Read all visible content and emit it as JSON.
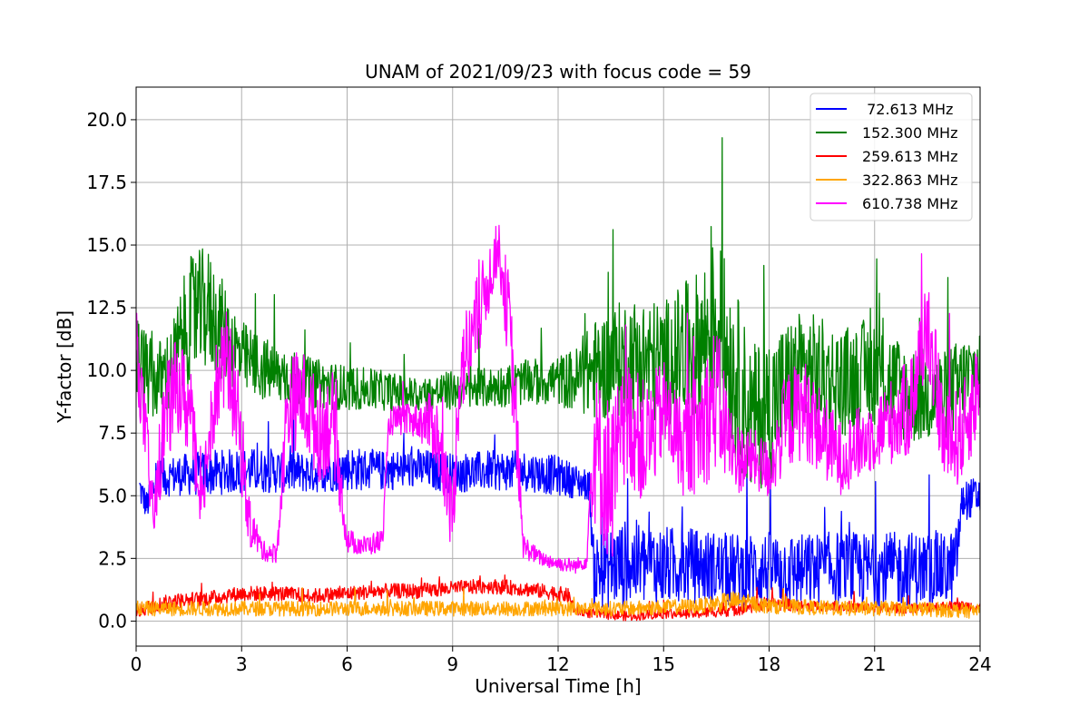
{
  "chart_data": {
    "type": "line",
    "title": "UNAM of 2021/09/23 with focus code = 59",
    "xlabel": "Universal Time [h]",
    "ylabel": "Y-factor [dB]",
    "xlim": [
      0,
      24
    ],
    "ylim": [
      -1.0,
      21.3
    ],
    "xticks": [
      0,
      3,
      6,
      9,
      12,
      15,
      18,
      21,
      24
    ],
    "xtick_labels": [
      "0",
      "3",
      "6",
      "9",
      "12",
      "15",
      "18",
      "21",
      "24"
    ],
    "yticks": [
      0,
      2.5,
      5,
      7.5,
      10,
      12.5,
      15,
      17.5,
      20
    ],
    "ytick_labels": [
      "0.0",
      "2.5",
      "5.0",
      "7.5",
      "10.0",
      "12.5",
      "15.0",
      "17.5",
      "20.0"
    ],
    "grid": true,
    "legend_position": "top-right",
    "series": [
      {
        "name": " 72.613 MHz",
        "color": "#0000ff",
        "x": [
          0.1,
          0.3,
          0.6,
          1,
          2,
          3,
          4,
          5,
          6,
          7,
          8,
          9,
          10,
          11,
          12,
          12.9,
          13,
          14,
          15,
          16,
          17,
          18,
          19,
          20,
          21,
          22,
          23,
          23.3,
          23.5,
          24
        ],
        "y": [
          5.3,
          4.6,
          5.6,
          5.8,
          5.9,
          6.0,
          6.0,
          5.9,
          6.1,
          6.0,
          6.1,
          5.9,
          6.0,
          6.0,
          5.8,
          5.4,
          2.0,
          2.3,
          2.2,
          2.2,
          2.0,
          2.1,
          2.0,
          2.1,
          2.0,
          2.1,
          2.0,
          2.2,
          4.8,
          5.0
        ],
        "noise": [
          0.7,
          0.6,
          0.8,
          0.8,
          0.9,
          0.9,
          0.9,
          0.8,
          0.9,
          0.8,
          0.8,
          0.8,
          0.8,
          0.8,
          0.8,
          0.6,
          1.5,
          1.8,
          1.6,
          1.5,
          1.5,
          1.5,
          1.5,
          1.5,
          1.5,
          1.5,
          1.5,
          1.5,
          0.8,
          0.8
        ]
      },
      {
        "name": "152.300 MHz",
        "color": "#008000",
        "x": [
          0,
          0.5,
          1,
          1.5,
          2,
          2.5,
          3,
          4,
          5,
          6,
          7,
          8,
          9,
          10,
          11,
          12,
          12.5,
          13,
          14,
          15,
          16,
          16.5,
          17,
          17.5,
          18,
          18.5,
          19,
          20,
          21,
          22,
          23,
          24
        ],
        "y": [
          10.5,
          9.5,
          10.0,
          12.0,
          12.5,
          11.5,
          10.5,
          9.8,
          9.5,
          9.3,
          9.2,
          9.0,
          9.2,
          9.3,
          9.5,
          9.6,
          9.6,
          10.0,
          10.5,
          10.3,
          11.0,
          12.0,
          10.0,
          8.0,
          8.5,
          9.5,
          10.0,
          9.5,
          10.0,
          9.0,
          9.0,
          10.0
        ],
        "noise": [
          2.0,
          1.5,
          1.8,
          2.5,
          2.5,
          2.0,
          1.5,
          1.2,
          1.0,
          0.9,
          0.8,
          0.7,
          0.8,
          0.8,
          0.9,
          1.0,
          1.3,
          2.0,
          2.5,
          2.5,
          3.0,
          3.5,
          3.5,
          3.0,
          3.0,
          2.5,
          2.5,
          2.2,
          2.2,
          2.0,
          1.8,
          2.0
        ]
      },
      {
        "name": "259.613 MHz",
        "color": "#ff0000",
        "x": [
          0,
          1,
          2,
          3,
          4,
          5,
          6,
          7,
          8,
          9,
          10,
          11,
          12,
          12.3,
          12.5,
          13,
          14,
          15,
          16,
          17,
          18,
          19,
          20,
          21,
          22,
          23,
          24
        ],
        "y": [
          0.4,
          0.8,
          0.9,
          1.1,
          1.1,
          1.0,
          1.1,
          1.2,
          1.2,
          1.3,
          1.4,
          1.3,
          1.1,
          1.0,
          0.4,
          0.3,
          0.2,
          0.3,
          0.3,
          0.5,
          0.7,
          0.6,
          0.6,
          0.5,
          0.5,
          0.6,
          0.6
        ],
        "noise": [
          0.3,
          0.3,
          0.3,
          0.3,
          0.3,
          0.3,
          0.3,
          0.3,
          0.3,
          0.3,
          0.3,
          0.3,
          0.3,
          0.3,
          0.2,
          0.2,
          0.2,
          0.2,
          0.2,
          0.3,
          0.3,
          0.2,
          0.2,
          0.2,
          0.2,
          0.2,
          0.2
        ]
      },
      {
        "name": "322.863 MHz",
        "color": "#ffa500",
        "x": [
          0,
          2,
          4,
          6,
          8,
          10,
          12,
          14,
          16,
          17,
          18,
          20,
          22,
          24
        ],
        "y": [
          0.5,
          0.5,
          0.5,
          0.5,
          0.5,
          0.5,
          0.5,
          0.5,
          0.6,
          0.8,
          0.6,
          0.5,
          0.5,
          0.4
        ],
        "noise": [
          0.3,
          0.3,
          0.3,
          0.3,
          0.3,
          0.3,
          0.3,
          0.3,
          0.3,
          0.4,
          0.3,
          0.3,
          0.3,
          0.3
        ]
      },
      {
        "name": "610.738 MHz",
        "color": "#ff00ff",
        "x": [
          0,
          0.3,
          0.5,
          0.8,
          1.2,
          1.6,
          1.8,
          2.2,
          2.6,
          2.9,
          3.2,
          3.6,
          4,
          4.3,
          4.7,
          5.2,
          5.6,
          6,
          6.5,
          7,
          7.2,
          7.4,
          8,
          8.5,
          9,
          9.2,
          9.5,
          10,
          10.3,
          10.6,
          10.8,
          11,
          11.5,
          12,
          12.5,
          12.8,
          13,
          13.5,
          14,
          14.5,
          15,
          15.5,
          16,
          16.5,
          17,
          17.5,
          18,
          18.5,
          19,
          20,
          21,
          22,
          22.5,
          23,
          23.5,
          24
        ],
        "y": [
          11.0,
          7.0,
          4.0,
          8.0,
          9.5,
          8.0,
          4.0,
          9.0,
          10.5,
          8.0,
          4.0,
          2.8,
          2.7,
          8.5,
          9.0,
          7.5,
          8.0,
          3.2,
          3.0,
          3.2,
          8.0,
          8.0,
          8.0,
          7.8,
          4.0,
          10.0,
          11.0,
          13.5,
          15.0,
          12.0,
          8.0,
          3.0,
          2.5,
          2.3,
          2.2,
          2.4,
          7.0,
          5.5,
          8.0,
          7.0,
          8.5,
          7.0,
          7.5,
          9.0,
          6.5,
          6.5,
          6.0,
          8.0,
          8.5,
          6.5,
          7.5,
          8.5,
          12.0,
          7.0,
          7.5,
          9.5
        ],
        "noise": [
          1.5,
          1.5,
          1.0,
          2.0,
          2.0,
          2.0,
          1.0,
          2.0,
          2.0,
          2.0,
          1.0,
          0.4,
          0.4,
          2.0,
          2.0,
          2.0,
          2.0,
          0.5,
          0.4,
          0.5,
          0.6,
          0.6,
          0.7,
          1.5,
          1.5,
          2.0,
          2.0,
          1.5,
          1.0,
          2.0,
          2.0,
          0.5,
          0.3,
          0.3,
          0.3,
          0.3,
          3.0,
          3.5,
          2.5,
          2.5,
          2.0,
          2.0,
          2.5,
          3.0,
          1.5,
          1.2,
          1.2,
          2.0,
          2.0,
          1.5,
          1.5,
          2.0,
          2.0,
          2.0,
          2.0,
          2.0
        ]
      }
    ]
  }
}
